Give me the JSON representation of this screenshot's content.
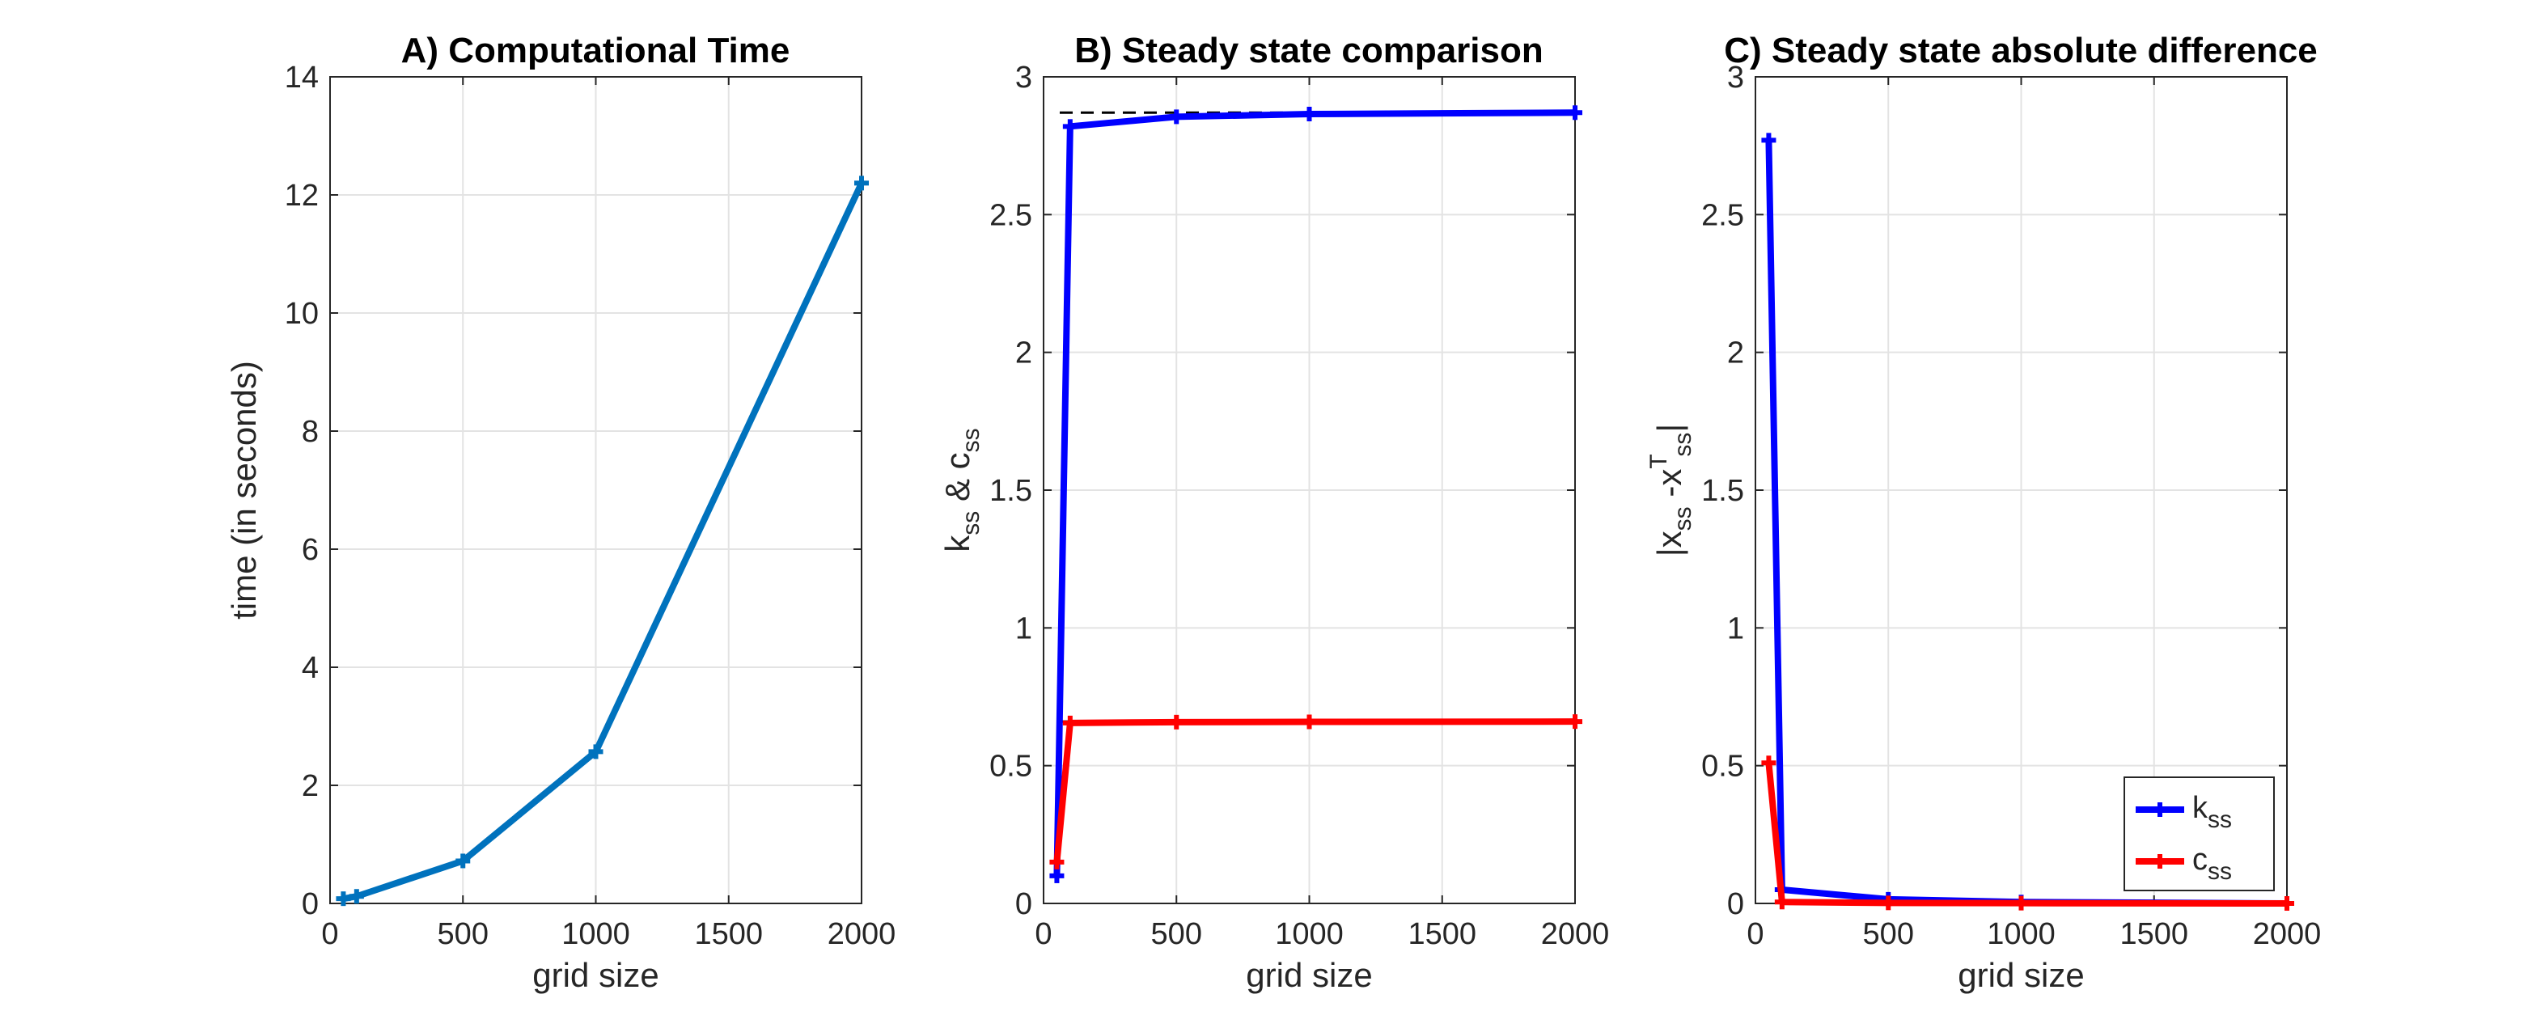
{
  "chart_data": [
    {
      "type": "line",
      "title": "A) Computational Time",
      "xlabel": "grid size",
      "ylabel": "time (in seconds)",
      "xlim": [
        0,
        2000
      ],
      "ylim": [
        0,
        14
      ],
      "xticks": [
        0,
        500,
        1000,
        1500,
        2000
      ],
      "yticks": [
        0,
        2,
        4,
        6,
        8,
        10,
        12,
        14
      ],
      "grid": true,
      "x": [
        50,
        100,
        500,
        1000,
        2000
      ],
      "series": [
        {
          "values": [
            0.08,
            0.12,
            0.72,
            2.57,
            12.2
          ],
          "color": "#0072BD",
          "marker": "plus"
        }
      ],
      "reference_lines": []
    },
    {
      "type": "line",
      "title": "B) Steady state comparison",
      "xlabel": "grid size",
      "ylabel": {
        "parts": [
          {
            "t": "k"
          },
          {
            "t": "ss",
            "sub": true
          },
          {
            "t": " & c"
          },
          {
            "t": "ss",
            "sub": true
          }
        ]
      },
      "xlim": [
        0,
        2000
      ],
      "ylim": [
        0,
        3
      ],
      "xticks": [
        0,
        500,
        1000,
        1500,
        2000
      ],
      "yticks": [
        0,
        0.5,
        1,
        1.5,
        2,
        2.5,
        3
      ],
      "grid": true,
      "x": [
        50,
        100,
        500,
        1000,
        2000
      ],
      "series": [
        {
          "values": [
            0.1,
            2.82,
            2.855,
            2.865,
            2.87
          ],
          "color": "#0000FF",
          "marker": "plus"
        },
        {
          "values": [
            0.15,
            0.655,
            0.658,
            0.659,
            0.66
          ],
          "color": "#FF0000",
          "marker": "plus"
        }
      ],
      "reference_lines": [
        {
          "y": 2.87,
          "style": "dashed",
          "color": "#000000"
        },
        {
          "y": 0.66,
          "style": "dashed",
          "color": "#000000"
        }
      ]
    },
    {
      "type": "line",
      "title": "C) Steady state absolute difference",
      "xlabel": "grid size",
      "ylabel": {
        "parts": [
          {
            "t": "|x"
          },
          {
            "t": "ss",
            "sub": true
          },
          {
            "t": " -x"
          },
          {
            "t": "T",
            "sup": true
          },
          {
            "t": "ss",
            "sub": true
          },
          {
            "t": "|"
          }
        ]
      },
      "xlim": [
        0,
        2000
      ],
      "ylim": [
        0,
        3
      ],
      "xticks": [
        0,
        500,
        1000,
        1500,
        2000
      ],
      "yticks": [
        0,
        0.5,
        1,
        1.5,
        2,
        2.5,
        3
      ],
      "grid": true,
      "x": [
        50,
        100,
        500,
        1000,
        2000
      ],
      "series": [
        {
          "name": "k_ss",
          "values": [
            2.77,
            0.05,
            0.015,
            0.005,
            0.0
          ],
          "color": "#0000FF",
          "marker": "plus"
        },
        {
          "name": "c_ss",
          "values": [
            0.51,
            0.005,
            0.002,
            0.001,
            0.0
          ],
          "color": "#FF0000",
          "marker": "plus"
        }
      ],
      "reference_lines": [],
      "legend": {
        "placement": "bottom-right",
        "entries": [
          {
            "parts": [
              {
                "t": "k"
              },
              {
                "t": "ss",
                "sub": true
              }
            ],
            "color": "#0000FF"
          },
          {
            "parts": [
              {
                "t": "c"
              },
              {
                "t": "ss",
                "sub": true
              }
            ],
            "color": "#FF0000"
          }
        ]
      }
    }
  ]
}
